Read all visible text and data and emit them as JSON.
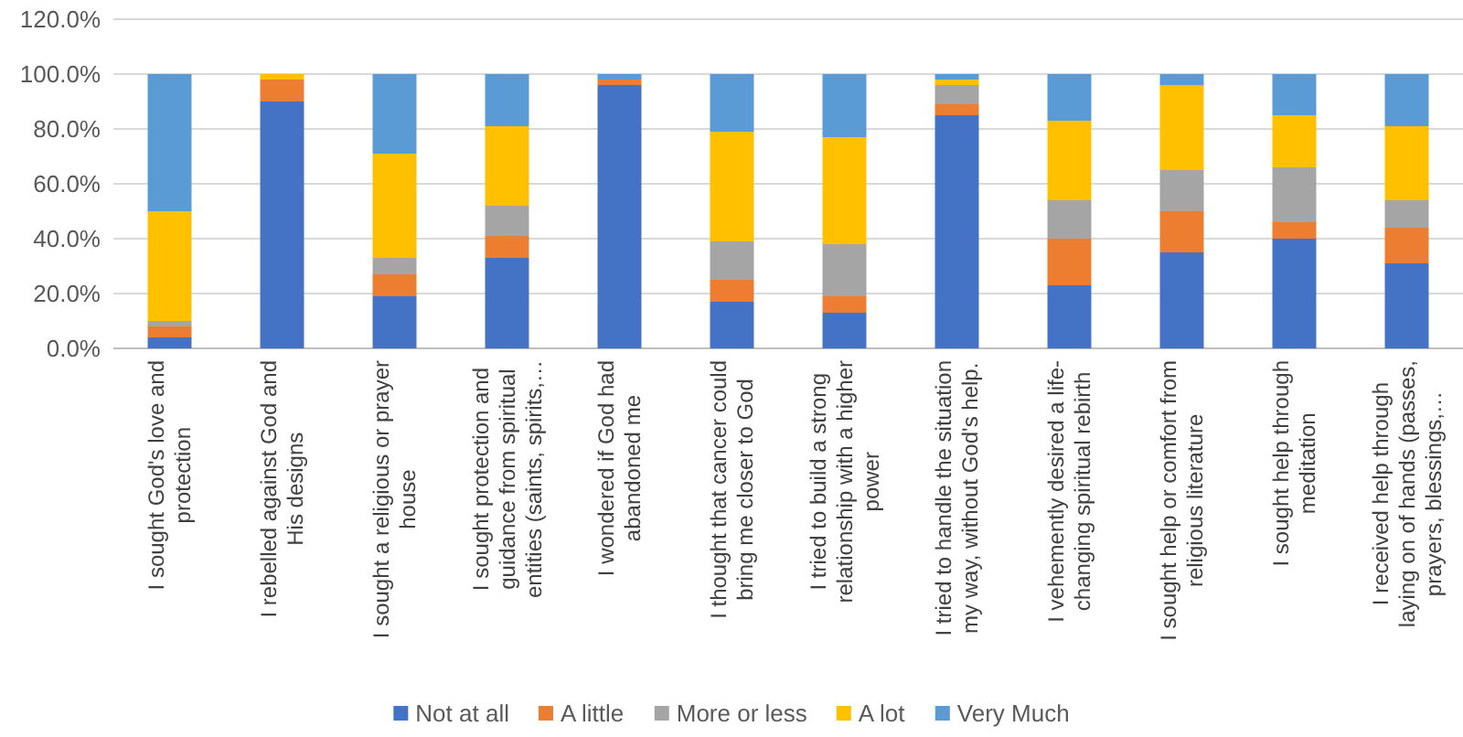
{
  "chart_data": {
    "type": "bar",
    "stacked": true,
    "categories": [
      "I sought God's love and protection",
      "I rebelled against God and His designs",
      "I sought a religious or prayer house",
      "I sought protection and guidance from spiritual entities (saints, spirits,…",
      "I wondered if God had abandoned me",
      "I thought that cancer could bring me closer to God",
      "I tried to build a strong relationship with a higher power",
      "I tried to handle the situation my way, without God's help.",
      "I vehemently desired a life-changing spiritual rebirth",
      "I sought help or comfort from religious literature",
      "I sought help through meditation",
      "I received help through laying on of hands (passes, prayers, blessings,…"
    ],
    "series": [
      {
        "name": "Not at all",
        "color": "#4472c4",
        "values": [
          4,
          90,
          19,
          33,
          96,
          17,
          13,
          85,
          23,
          35,
          40,
          31
        ]
      },
      {
        "name": "A little",
        "color": "#ed7d31",
        "values": [
          4,
          8,
          8,
          8,
          2,
          8,
          6,
          4,
          17,
          15,
          6,
          13
        ]
      },
      {
        "name": "More or less",
        "color": "#a5a5a5",
        "values": [
          2,
          0,
          6,
          11,
          0,
          14,
          19,
          7,
          14,
          15,
          20,
          10
        ]
      },
      {
        "name": "A lot",
        "color": "#ffc000",
        "values": [
          40,
          2,
          38,
          29,
          0,
          40,
          39,
          2,
          29,
          31,
          19,
          27
        ]
      },
      {
        "name": "Very Much",
        "color": "#5b9bd5",
        "values": [
          50,
          0,
          29,
          19,
          2,
          21,
          23,
          2,
          17,
          4,
          15,
          19
        ]
      }
    ],
    "ylim": [
      0,
      120
    ],
    "yticks": [
      {
        "value": 0,
        "label": "0.0%"
      },
      {
        "value": 20,
        "label": "20.0%"
      },
      {
        "value": 40,
        "label": "40.0%"
      },
      {
        "value": 60,
        "label": "60.0%"
      },
      {
        "value": 80,
        "label": "80.0%"
      },
      {
        "value": 100,
        "label": "100.0%"
      },
      {
        "value": 120,
        "label": "120.0%"
      }
    ],
    "grid": "y",
    "legend": "bottom"
  }
}
